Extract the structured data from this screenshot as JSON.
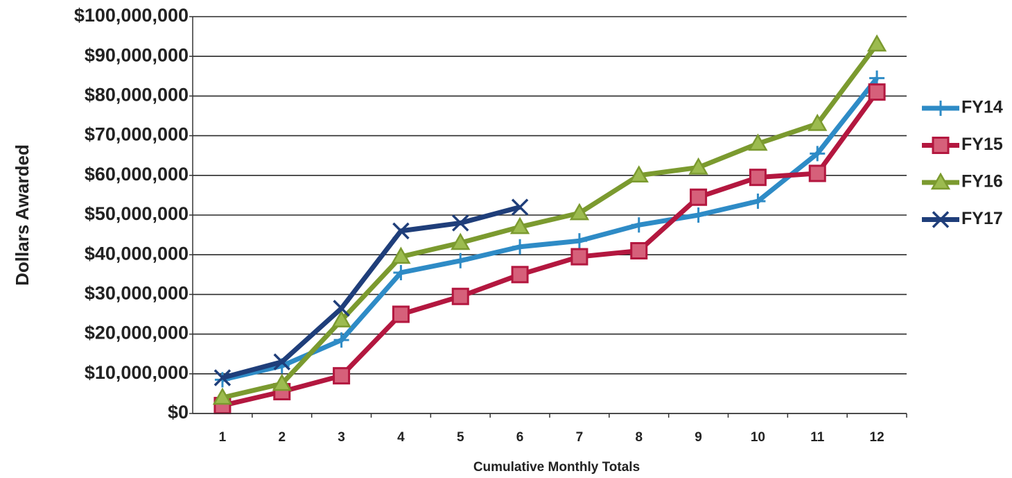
{
  "chart_data": {
    "type": "line",
    "y_label": "Dollars Awarded",
    "x_label": "Cumulative Monthly Totals",
    "categories": [
      "1",
      "2",
      "3",
      "4",
      "5",
      "6",
      "7",
      "8",
      "9",
      "10",
      "11",
      "12"
    ],
    "series": [
      {
        "name": "FY14",
        "color": "#2e8bc6",
        "marker": "plus",
        "values": [
          8500000,
          12000000,
          18500000,
          35500000,
          38500000,
          42000000,
          43500000,
          47500000,
          50000000,
          53500000,
          65500000,
          84500000
        ]
      },
      {
        "name": "FY15",
        "color": "#b3173f",
        "marker": "square",
        "values": [
          2000000,
          5500000,
          9500000,
          25000000,
          29500000,
          35000000,
          39500000,
          41000000,
          54500000,
          59500000,
          60500000,
          81000000
        ]
      },
      {
        "name": "FY16",
        "color": "#7b9a2f",
        "marker": "triangle",
        "values": [
          4000000,
          7500000,
          23500000,
          39500000,
          43000000,
          47000000,
          50500000,
          60000000,
          62000000,
          68000000,
          73000000,
          93000000
        ]
      },
      {
        "name": "FY17",
        "color": "#1f3e7a",
        "marker": "x",
        "values": [
          9000000,
          13000000,
          26500000,
          46000000,
          48000000,
          52000000,
          null,
          null,
          null,
          null,
          null,
          null
        ]
      }
    ],
    "ylim": [
      0,
      100000000
    ],
    "yticks": [
      {
        "value": 0,
        "label": "$0"
      },
      {
        "value": 10000000,
        "label": "$10,000,000"
      },
      {
        "value": 20000000,
        "label": "$20,000,000"
      },
      {
        "value": 30000000,
        "label": "$30,000,000"
      },
      {
        "value": 40000000,
        "label": "$40,000,000"
      },
      {
        "value": 50000000,
        "label": "$50,000,000"
      },
      {
        "value": 60000000,
        "label": "$60,000,000"
      },
      {
        "value": 70000000,
        "label": "$70,000,000"
      },
      {
        "value": 80000000,
        "label": "$80,000,000"
      },
      {
        "value": 90000000,
        "label": "$90,000,000"
      },
      {
        "value": 100000000,
        "label": "$100,000,000"
      }
    ],
    "grid": true,
    "legend": "right"
  }
}
